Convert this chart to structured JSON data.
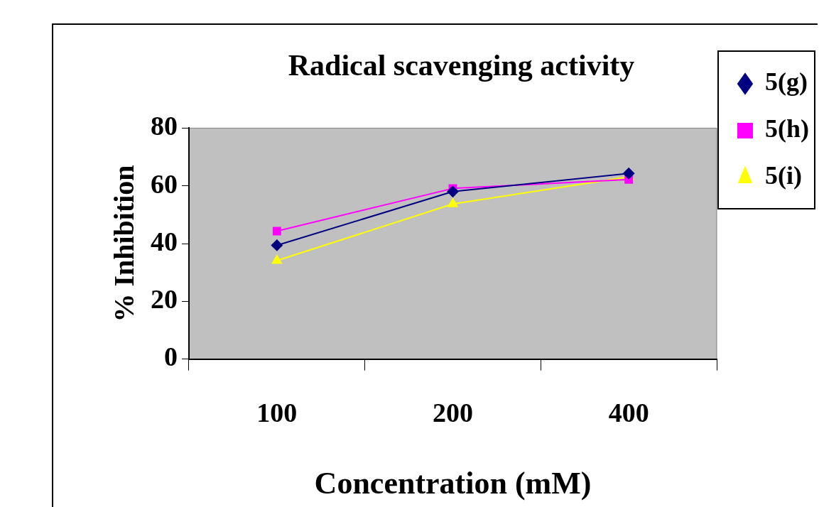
{
  "chart_data": {
    "type": "line",
    "title": "Radical scavenging activity",
    "xlabel": "Concentration (mM)",
    "ylabel": "% Inhibition",
    "categories": [
      "100",
      "200",
      "400"
    ],
    "ylim": [
      0,
      80
    ],
    "yticks": [
      0,
      20,
      40,
      60,
      80
    ],
    "grid": false,
    "legend": "right",
    "series": [
      {
        "name": "5(g)",
        "color": "#000080",
        "marker": "diamond",
        "values": [
          39.4,
          58,
          64.3
        ]
      },
      {
        "name": "5(h)",
        "color": "#ff00ff",
        "marker": "square",
        "values": [
          44.3,
          59.1,
          62.2
        ]
      },
      {
        "name": "5(i)",
        "color": "#ffff00",
        "marker": "triangle",
        "values": [
          34.1,
          53.7,
          63.1
        ]
      }
    ]
  }
}
